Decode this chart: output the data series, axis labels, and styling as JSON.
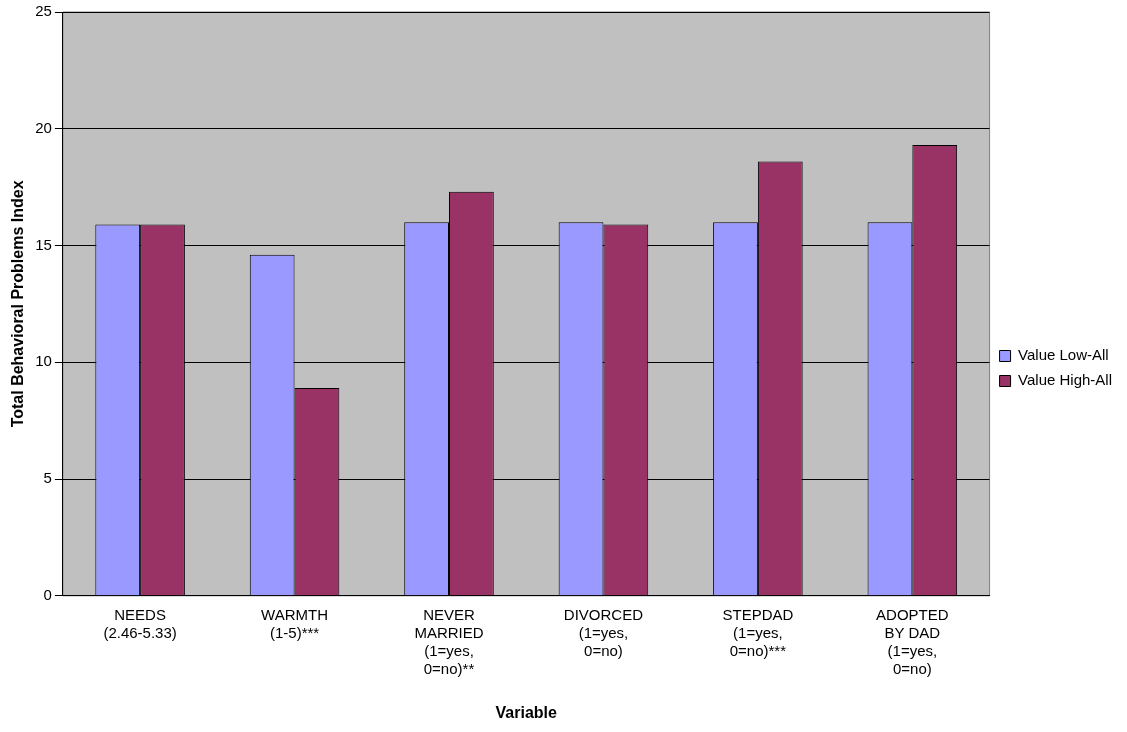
{
  "chart_data": {
    "type": "bar",
    "xlabel": "Variable",
    "ylabel": "Total Behavioral Problems Index",
    "categories": [
      "NEEDS\n(2.46-5.33)",
      "WARMTH\n(1-5)***",
      "NEVER\nMARRIED\n(1=yes,\n0=no)**",
      "DIVORCED\n(1=yes,\n0=no)",
      "STEPDAD\n(1=yes,\n0=no)***",
      "ADOPTED\nBY DAD\n(1=yes,\n0=no)"
    ],
    "series": [
      {
        "name": "Value Low-All",
        "color": "#9999ff",
        "values": [
          15.9,
          14.6,
          16.0,
          16.0,
          16.0,
          16.0
        ]
      },
      {
        "name": "Value High-All",
        "color": "#993366",
        "values": [
          15.9,
          8.9,
          17.3,
          15.9,
          18.6,
          19.3
        ]
      }
    ],
    "ylim": [
      0,
      25
    ],
    "yticks": [
      0,
      5,
      10,
      15,
      20,
      25
    ],
    "grid": "y",
    "legend": "right"
  }
}
